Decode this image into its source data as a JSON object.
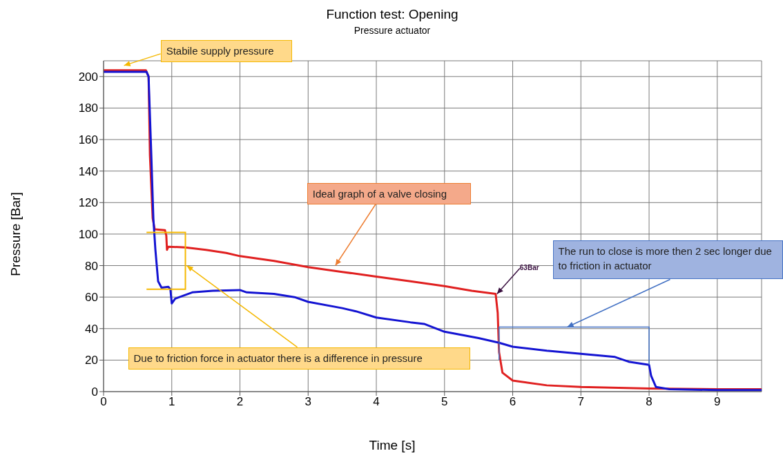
{
  "chart_data": {
    "type": "line",
    "title": "Function test: Opening",
    "subtitle": "Pressure actuator",
    "xlabel": "Time [s]",
    "ylabel": "Pressure [Bar]",
    "xlim": [
      0,
      9.65
    ],
    "ylim": [
      0,
      210
    ],
    "xticks": [
      0,
      1,
      2,
      3,
      4,
      5,
      6,
      7,
      8,
      9
    ],
    "yticks": [
      0,
      20,
      40,
      60,
      80,
      100,
      120,
      140,
      160,
      180,
      200
    ],
    "grid": true,
    "marker": "none",
    "series": [
      {
        "color": "#e02020",
        "x": [
          0,
          0.62,
          0.66,
          0.68,
          0.72,
          0.75,
          0.9,
          0.92,
          0.93,
          0.95,
          1.2,
          1.5,
          1.8,
          2.0,
          2.5,
          3.0,
          3.5,
          4.0,
          4.5,
          5.0,
          5.4,
          5.75,
          5.78,
          5.8,
          5.85,
          6.0,
          6.5,
          7.0,
          8.0,
          9.0,
          9.65
        ],
        "values": [
          204,
          204,
          200,
          150,
          110,
          103,
          102.5,
          99,
          90,
          92,
          91.5,
          90,
          88,
          86,
          83,
          79,
          76,
          73,
          70,
          67,
          64,
          62,
          50,
          25,
          12,
          7,
          4,
          3,
          2,
          1.5,
          1.5
        ]
      },
      {
        "color": "#1414d2",
        "x": [
          0,
          0.63,
          0.66,
          0.7,
          0.73,
          0.76,
          0.8,
          0.85,
          0.95,
          0.98,
          1.0,
          1.05,
          1.3,
          1.6,
          2.0,
          2.1,
          2.5,
          2.8,
          3.0,
          3.5,
          3.7,
          4.0,
          4.5,
          4.7,
          5.0,
          5.5,
          5.8,
          6.0,
          6.5,
          7.0,
          7.5,
          7.7,
          8.0,
          8.03,
          8.1,
          8.3,
          9.0,
          9.65
        ],
        "values": [
          203,
          203,
          200,
          150,
          110,
          90,
          70,
          66,
          66.5,
          65,
          56,
          59,
          63,
          64,
          64.5,
          63,
          62,
          60,
          57,
          53,
          51,
          47,
          44,
          43,
          38,
          34,
          31,
          28.5,
          26,
          24,
          22,
          19,
          17,
          10,
          3,
          1.5,
          1,
          1
        ]
      }
    ],
    "annotations": [
      "Stabile supply pressure",
      "Ideal graph of a valve closing",
      "Due to friction force in actuator there is a difference in pressure",
      "The run to close is more then 2 sec longer due to friction in actuator",
      {
        "text": "63Bar",
        "x": 5.77,
        "y": 62
      }
    ]
  }
}
